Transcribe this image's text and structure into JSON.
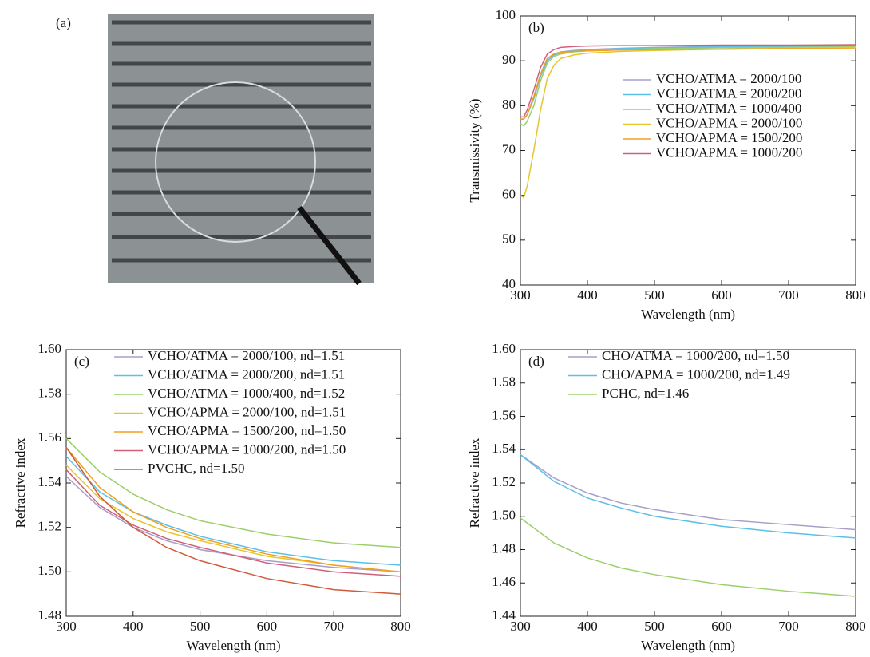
{
  "figure_a": {
    "label": "(a)"
  },
  "chart_data": [
    {
      "type": "line",
      "panel_label": "(b)",
      "xlabel": "Wavelength (nm)",
      "ylabel": "Transmissivity (%)",
      "xlim": [
        300,
        800
      ],
      "xticks": [
        300,
        400,
        500,
        600,
        700,
        800
      ],
      "ylim": [
        40,
        100
      ],
      "yticks": [
        40,
        50,
        60,
        70,
        80,
        90,
        100
      ],
      "legend": "upper right",
      "x": [
        300,
        305,
        310,
        320,
        330,
        340,
        350,
        360,
        380,
        400,
        450,
        500,
        600,
        700,
        800
      ],
      "series": [
        {
          "name": "VCHO/ATMA = 2000/100",
          "color": "#a79fc8",
          "values": [
            77,
            77,
            78,
            82,
            87,
            90.5,
            91.5,
            92,
            92.3,
            92.5,
            92.8,
            93,
            93.2,
            93.3,
            93.4
          ]
        },
        {
          "name": "VCHO/ATMA = 2000/200",
          "color": "#5bbfe8",
          "values": [
            77,
            77,
            78,
            81.5,
            86.5,
            90,
            91.3,
            91.8,
            92.2,
            92.4,
            92.7,
            92.9,
            93.1,
            93.2,
            93.3
          ]
        },
        {
          "name": "VCHO/ATMA = 1000/400",
          "color": "#9ccf6a",
          "values": [
            76,
            75.5,
            76.5,
            80,
            85.5,
            89.5,
            91,
            91.5,
            92,
            92.2,
            92.5,
            92.7,
            92.9,
            93,
            93.1
          ]
        },
        {
          "name": "VCHO/APMA = 2000/100",
          "color": "#e6c52e",
          "values": [
            60,
            59.5,
            62,
            70,
            79,
            86,
            89,
            90.5,
            91.3,
            91.7,
            92.1,
            92.3,
            92.6,
            92.8,
            93
          ]
        },
        {
          "name": "VCHO/APMA = 1500/200",
          "color": "#f0a020",
          "values": [
            77,
            77,
            78,
            82,
            87,
            90.5,
            91.5,
            91.9,
            92.1,
            92.2,
            92.4,
            92.5,
            92.6,
            92.7,
            92.7
          ]
        },
        {
          "name": "VCHO/APMA = 1000/200",
          "color": "#d0607a",
          "values": [
            77.5,
            77.5,
            79,
            83.5,
            88.5,
            91.5,
            92.5,
            93,
            93.2,
            93.3,
            93.4,
            93.4,
            93.5,
            93.5,
            93.6
          ]
        }
      ]
    },
    {
      "type": "line",
      "panel_label": "(c)",
      "xlabel": "Wavelength (nm)",
      "ylabel": "Refractive index",
      "xlim": [
        300,
        800
      ],
      "xticks": [
        300,
        400,
        500,
        600,
        700,
        800
      ],
      "ylim": [
        1.48,
        1.6
      ],
      "yticks": [
        1.48,
        {
          "value": 1.5,
          "label": "1.50"
        },
        1.52,
        1.54,
        1.56,
        1.58,
        {
          "value": 1.6,
          "label": "1.60"
        }
      ],
      "legend": "upper left",
      "x": [
        300,
        350,
        400,
        450,
        500,
        600,
        700,
        800
      ],
      "series": [
        {
          "name": "VCHO/ATMA = 2000/100, nd=1.51",
          "color": "#a79fc8",
          "values": [
            1.543,
            1.529,
            1.52,
            1.514,
            1.51,
            1.505,
            1.502,
            1.5
          ]
        },
        {
          "name": "VCHO/ATMA = 2000/200, nd=1.51",
          "color": "#5bbfe8",
          "values": [
            1.552,
            1.536,
            1.527,
            1.521,
            1.516,
            1.509,
            1.505,
            1.503
          ]
        },
        {
          "name": "VCHO/ATMA = 1000/400, nd=1.52",
          "color": "#9ccf6a",
          "values": [
            1.56,
            1.545,
            1.535,
            1.528,
            1.523,
            1.517,
            1.513,
            1.511
          ]
        },
        {
          "name": "VCHO/APMA = 2000/100, nd=1.51",
          "color": "#e6c52e",
          "values": [
            1.548,
            1.533,
            1.524,
            1.518,
            1.514,
            1.507,
            1.503,
            1.5
          ]
        },
        {
          "name": "VCHO/APMA = 1500/200, nd=1.50",
          "color": "#f0a020",
          "values": [
            1.556,
            1.538,
            1.527,
            1.52,
            1.515,
            1.508,
            1.503,
            1.5
          ]
        },
        {
          "name": "VCHO/APMA = 1000/200, nd=1.50",
          "color": "#d0607a",
          "values": [
            1.546,
            1.53,
            1.521,
            1.515,
            1.511,
            1.504,
            1.5,
            1.498
          ]
        },
        {
          "name": "PVCHC, nd=1.50",
          "color": "#d05a3a",
          "values": [
            1.556,
            1.534,
            1.52,
            1.511,
            1.505,
            1.497,
            1.492,
            1.49
          ]
        }
      ]
    },
    {
      "type": "line",
      "panel_label": "(d)",
      "xlabel": "Wavelength (nm)",
      "ylabel": "Refractive index",
      "xlim": [
        300,
        800
      ],
      "xticks": [
        300,
        400,
        500,
        600,
        700,
        800
      ],
      "ylim": [
        1.44,
        1.6
      ],
      "yticks": [
        1.44,
        1.46,
        1.48,
        {
          "value": 1.5,
          "label": "1.50"
        },
        1.52,
        1.54,
        1.56,
        1.58,
        {
          "value": 1.6,
          "label": "1.60"
        }
      ],
      "legend": "upper left",
      "x": [
        300,
        350,
        400,
        450,
        500,
        600,
        700,
        800
      ],
      "series": [
        {
          "name": "CHO/ATMA = 1000/200, nd=1.50",
          "color": "#a79fc8",
          "values": [
            1.537,
            1.523,
            1.514,
            1.508,
            1.504,
            1.498,
            1.495,
            1.492
          ]
        },
        {
          "name": "CHO/APMA = 1000/200, nd=1.49",
          "color": "#5bbfe8",
          "values": [
            1.537,
            1.521,
            1.511,
            1.505,
            1.5,
            1.494,
            1.49,
            1.487
          ]
        },
        {
          "name": "PCHC, nd=1.46",
          "color": "#9ccf6a",
          "values": [
            1.499,
            1.484,
            1.475,
            1.469,
            1.465,
            1.459,
            1.455,
            1.452
          ]
        }
      ]
    }
  ]
}
